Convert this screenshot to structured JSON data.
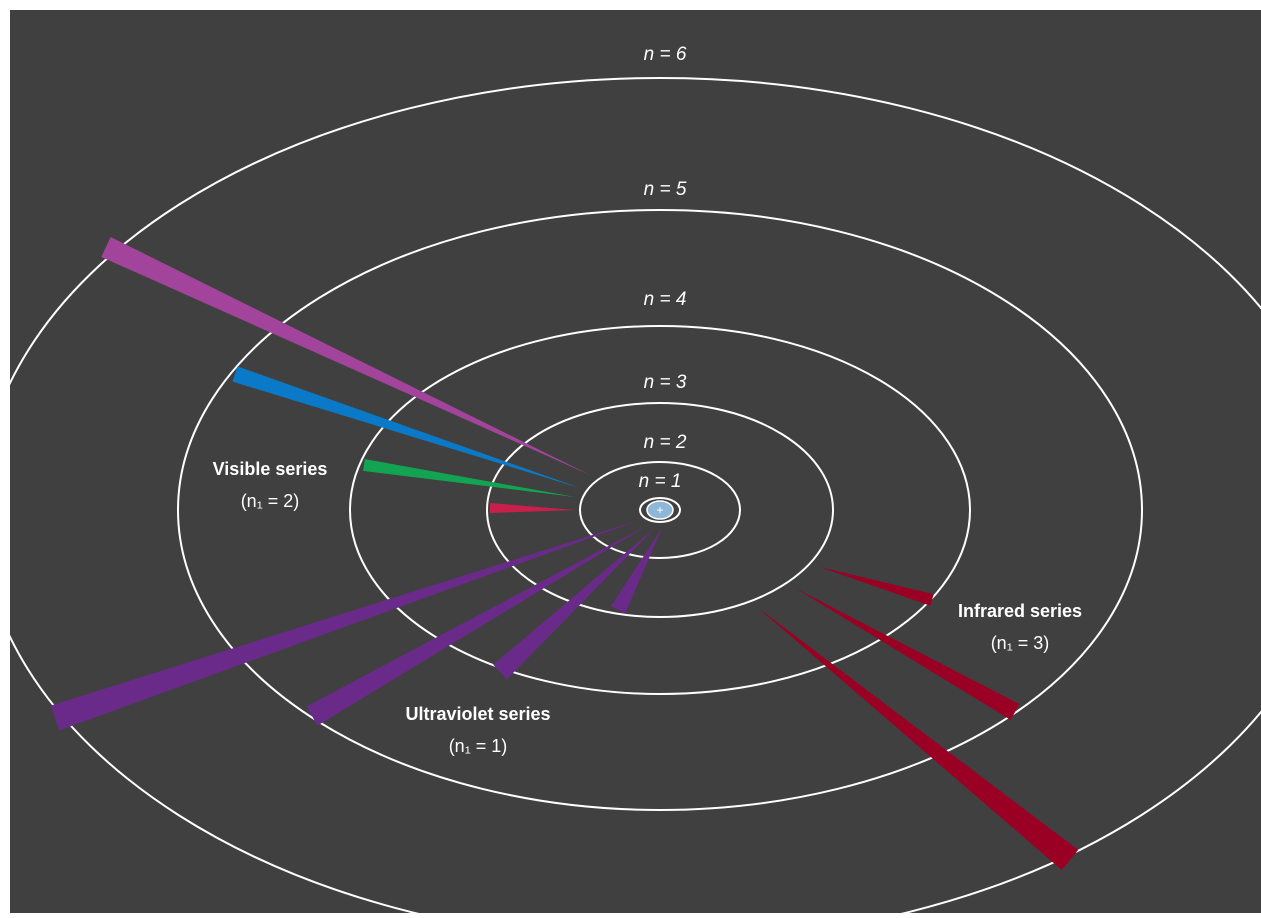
{
  "orbits": [
    {
      "label": "n = 1"
    },
    {
      "label": "n = 2"
    },
    {
      "label": "n = 3"
    },
    {
      "label": "n = 4"
    },
    {
      "label": "n = 5"
    },
    {
      "label": "n = 6"
    }
  ],
  "nucleus": "+",
  "series": [
    {
      "name": "Visible series",
      "note": "(n₁ = 2)"
    },
    {
      "name": "Ultraviolet series",
      "note": "(n₁ = 1)"
    },
    {
      "name": "Infrared series",
      "note": "(n₁ = 3)"
    }
  ]
}
